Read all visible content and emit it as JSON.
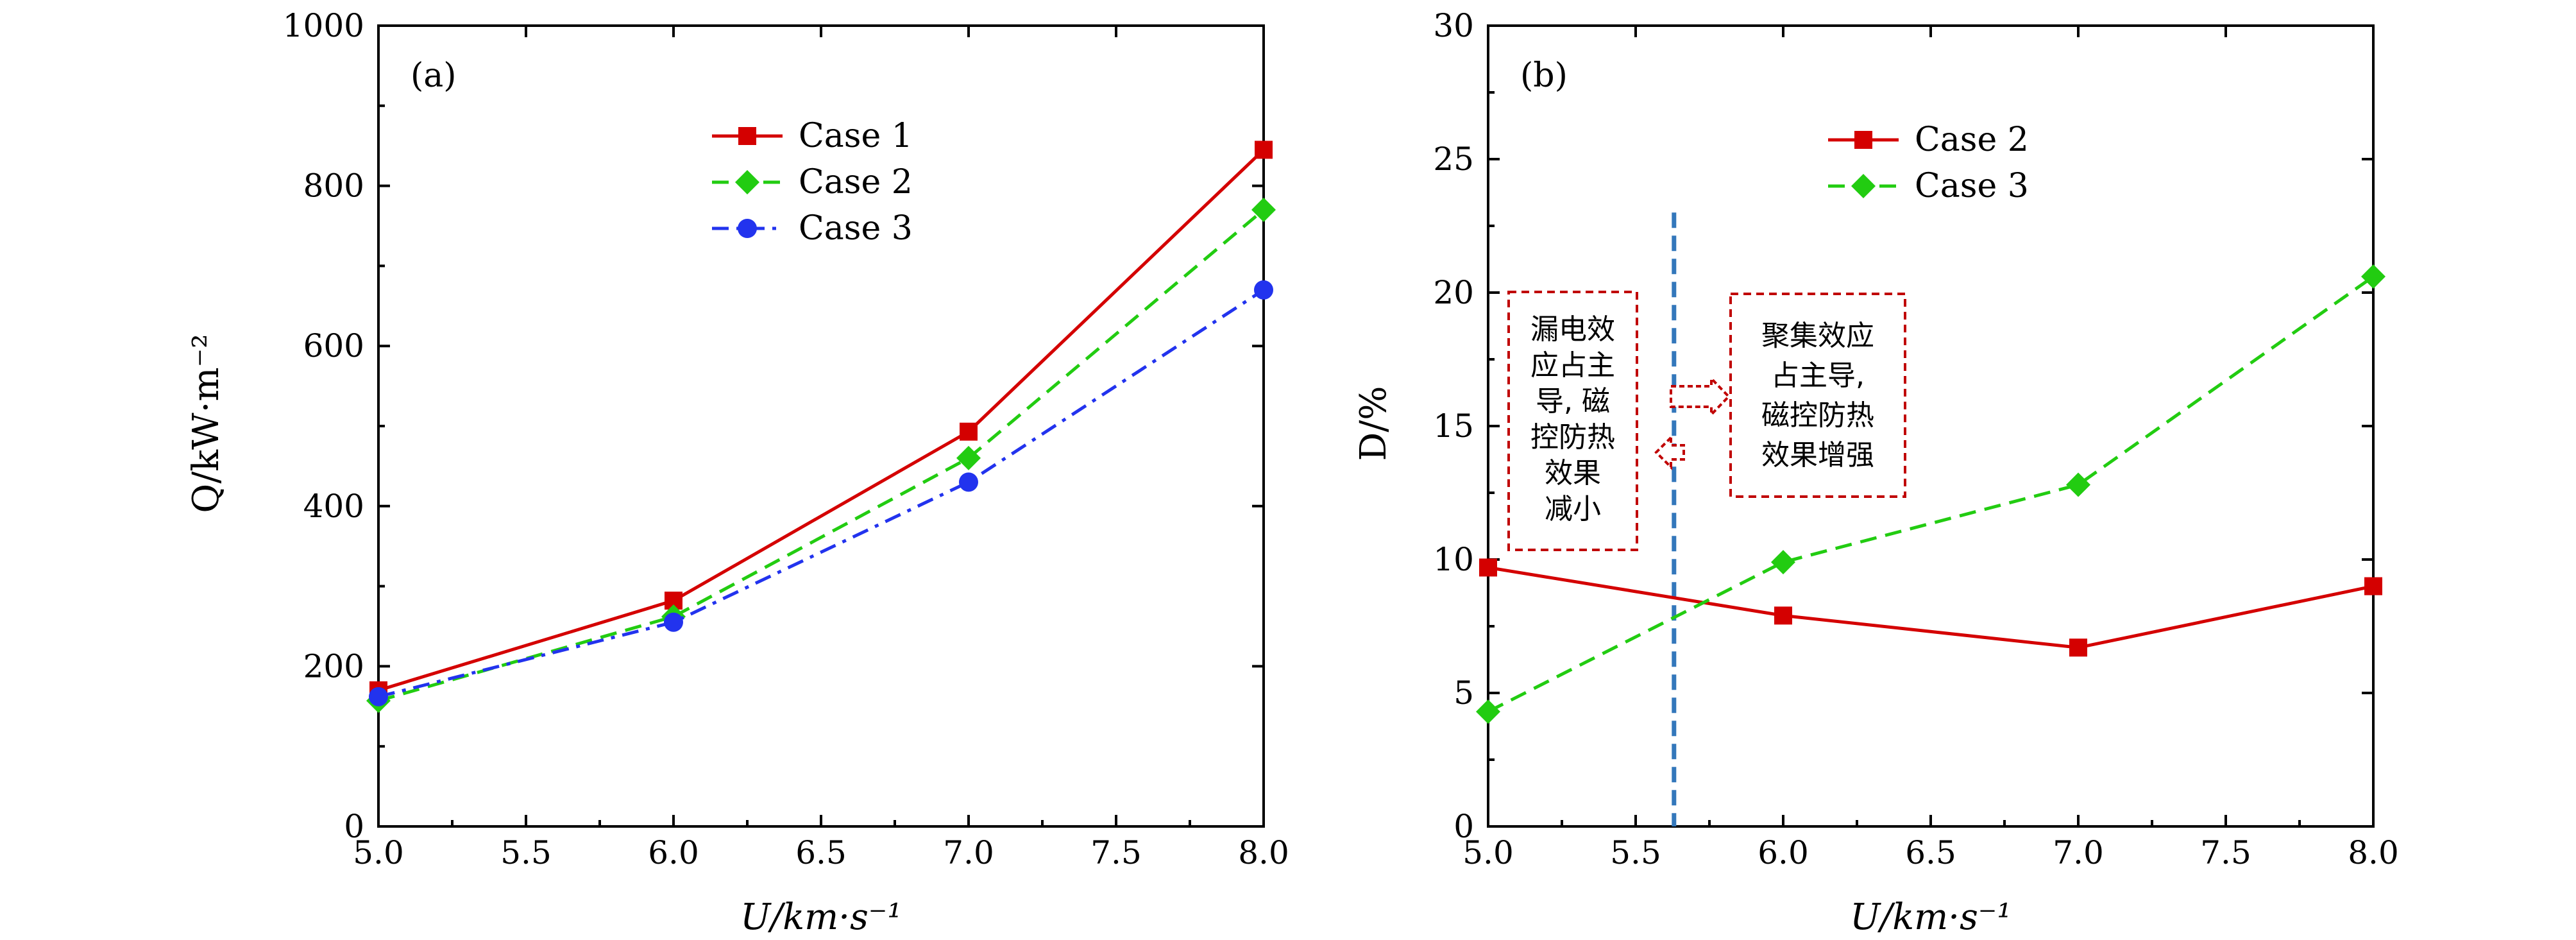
{
  "chart_data": [
    {
      "id": "a",
      "type": "line",
      "panel_label": "(a)",
      "x": [
        5.0,
        6.0,
        7.0,
        8.0
      ],
      "xlim": [
        5.0,
        8.0
      ],
      "ylim": [
        0,
        1000
      ],
      "xticks": [
        5.0,
        5.5,
        6.0,
        6.5,
        7.0,
        7.5,
        8.0
      ],
      "xtick_labels": [
        "5.0",
        "5.5",
        "6.0",
        "6.5",
        "7.0",
        "7.5",
        "8.0"
      ],
      "yticks": [
        0,
        200,
        400,
        600,
        800,
        1000
      ],
      "ytick_labels": [
        "0",
        "200",
        "400",
        "600",
        "800",
        "1000"
      ],
      "xlabel": "U/km·s⁻¹",
      "ylabel": "Q/kW·m⁻²",
      "legend_position": "top-center",
      "series": [
        {
          "name": "Case 1",
          "color": "#d40000",
          "marker": "square",
          "dash": "solid",
          "values": [
            170,
            282,
            493,
            845
          ]
        },
        {
          "name": "Case 2",
          "color": "#22cc11",
          "marker": "diamond",
          "dash": "dashed",
          "values": [
            157,
            262,
            460,
            770
          ]
        },
        {
          "name": "Case 3",
          "color": "#2233ee",
          "marker": "circle",
          "dash": "dashdot",
          "values": [
            162,
            255,
            430,
            670
          ]
        }
      ]
    },
    {
      "id": "b",
      "type": "line",
      "panel_label": "(b)",
      "x": [
        5.0,
        6.0,
        7.0,
        8.0
      ],
      "xlim": [
        5.0,
        8.0
      ],
      "ylim": [
        0,
        30
      ],
      "xticks": [
        5.0,
        5.5,
        6.0,
        6.5,
        7.0,
        7.5,
        8.0
      ],
      "xtick_labels": [
        "5.0",
        "5.5",
        "6.0",
        "6.5",
        "7.0",
        "7.5",
        "8.0"
      ],
      "yticks": [
        0,
        5,
        10,
        15,
        20,
        25,
        30
      ],
      "ytick_labels": [
        "0",
        "5",
        "10",
        "15",
        "20",
        "25",
        "30"
      ],
      "xlabel": "U/km·s⁻¹",
      "ylabel": "D/%",
      "legend_position": "top-center",
      "series": [
        {
          "name": "Case 2",
          "color": "#d40000",
          "marker": "square",
          "dash": "solid",
          "values": [
            9.7,
            7.9,
            6.7,
            9.0
          ]
        },
        {
          "name": "Case 3",
          "color": "#22cc11",
          "marker": "diamond",
          "dash": "dashed",
          "values": [
            4.3,
            9.9,
            12.8,
            20.6
          ]
        }
      ],
      "vertical_line": {
        "x": 5.63,
        "color": "#3377bb"
      },
      "annotations": {
        "left": [
          "漏电效",
          "应占主",
          "导, 磁",
          "控防热",
          "效果",
          "减小"
        ],
        "right": [
          "聚集效应",
          "占主导,",
          "磁控防热",
          "效果增强"
        ]
      }
    }
  ]
}
